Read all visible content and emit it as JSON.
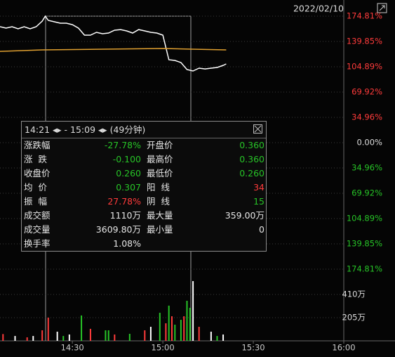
{
  "date": "2022/02/10",
  "chart_data": [
    {
      "type": "line",
      "xlim": [
        846,
        960
      ],
      "xticks": [
        {
          "value": 870,
          "label": "14:30"
        },
        {
          "value": 900,
          "label": "15:00"
        },
        {
          "value": 930,
          "label": "15:30"
        },
        {
          "value": 960,
          "label": "16:00"
        }
      ],
      "ylim": [
        -174.81,
        174.81
      ],
      "yticks": [
        {
          "value": 174.81,
          "label": "174.81%"
        },
        {
          "value": 139.85,
          "label": "139.85%"
        },
        {
          "value": 104.89,
          "label": "104.89%"
        },
        {
          "value": 69.92,
          "label": "69.92%"
        },
        {
          "value": 34.96,
          "label": "34.96%"
        },
        {
          "value": 0,
          "label": "0.00%"
        },
        {
          "value": -34.96,
          "label": "34.96%"
        },
        {
          "value": -69.92,
          "label": "69.92%"
        },
        {
          "value": -104.89,
          "label": "104.89%"
        },
        {
          "value": -139.85,
          "label": "139.85%"
        },
        {
          "value": -174.81,
          "label": "174.81%"
        }
      ],
      "grid": true,
      "series": [
        {
          "color": "#ffffff",
          "x": [
            846,
            848,
            850,
            852,
            854,
            856,
            858,
            860,
            861,
            862,
            864,
            866,
            868,
            870,
            872,
            874,
            876,
            878,
            880,
            882,
            884,
            886,
            888,
            890,
            892,
            894,
            896,
            898,
            900,
            902,
            904,
            906,
            908,
            910,
            912,
            914,
            916,
            918,
            920,
            921
          ],
          "values": [
            160.2,
            158.3,
            160.2,
            157.3,
            160.2,
            157.3,
            160.2,
            168.0,
            174.8,
            169.0,
            167.0,
            165.1,
            165.1,
            163.1,
            158.3,
            148.6,
            148.6,
            152.5,
            150.5,
            151.5,
            155.4,
            156.3,
            154.4,
            151.5,
            156.3,
            154.4,
            152.5,
            151.5,
            148.6,
            114.6,
            113.6,
            110.7,
            101.0,
            99.1,
            102.9,
            101.9,
            102.9,
            103.9,
            106.8,
            108.8
          ]
        },
        {
          "color": "#e0a030",
          "x": [
            846,
            860,
            880,
            900,
            910,
            921
          ],
          "values": [
            126.2,
            128.2,
            129.2,
            130.1,
            129.2,
            128.2
          ]
        }
      ]
    },
    {
      "type": "bar",
      "xlim": [
        846,
        960
      ],
      "ylim": [
        0,
        621
      ],
      "yticks": [
        {
          "value": 205,
          "label": "205万"
        },
        {
          "value": 410,
          "label": "410万"
        }
      ],
      "grid": true,
      "x": [
        847,
        851,
        855,
        857,
        860,
        862,
        865,
        867,
        869,
        873,
        876,
        881,
        882,
        884,
        889,
        894,
        896,
        899,
        901,
        902,
        903,
        904,
        906,
        907,
        908,
        909,
        910,
        912,
        916,
        918,
        920
      ],
      "values": [
        60,
        43,
        31,
        43,
        93,
        205,
        81,
        43,
        56,
        224,
        106,
        93,
        93,
        56,
        62,
        93,
        124,
        248,
        155,
        311,
        217,
        143,
        186,
        217,
        354,
        292,
        528,
        124,
        81,
        43,
        56
      ],
      "colors": [
        "#ff3b3b",
        "#ffffff",
        "#ff3b3b",
        "#ffffff",
        "#ff3b3b",
        "#ff3b3b",
        "#ffffff",
        "#27c427",
        "#ffffff",
        "#27c427",
        "#ff3b3b",
        "#27c427",
        "#27c427",
        "#ff3b3b",
        "#27c427",
        "#ff3b3b",
        "#ffffff",
        "#27c427",
        "#ff3b3b",
        "#27c427",
        "#ff3b3b",
        "#27c427",
        "#27c427",
        "#ff3b3b",
        "#27c427",
        "#27c427",
        "#ffffff",
        "#ff3b3b",
        "#ffffff",
        "#27c427",
        "#ffffff"
      ]
    }
  ],
  "tooltip": {
    "start": "14:21",
    "separator": "-",
    "end": "15:09",
    "duration": "(49分钟)",
    "rows": [
      [
        "涨跌幅",
        "-27.78%",
        "开盘价",
        "0.360"
      ],
      [
        "涨  跌",
        "-0.100",
        "最高价",
        "0.360"
      ],
      [
        "收盘价",
        "0.260",
        "最低价",
        "0.260"
      ],
      [
        "均  价",
        "0.307",
        "阳  线",
        "34"
      ],
      [
        "振  幅",
        "27.78%",
        "阴  线",
        "15"
      ],
      [
        "成交额",
        "1110万",
        "最大量",
        "359.00万"
      ],
      [
        "成交量",
        "3609.80万",
        "最小量",
        "0"
      ],
      [
        "换手率",
        "1.08%"
      ]
    ]
  }
}
